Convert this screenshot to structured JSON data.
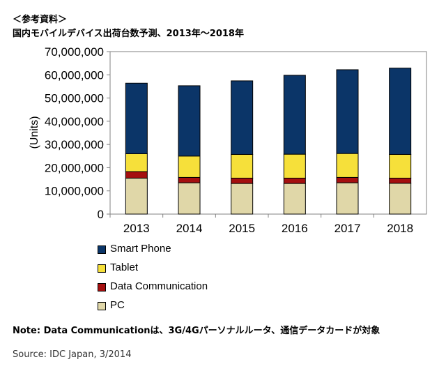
{
  "header": {
    "line1": "＜参考資料＞",
    "line2": "国内モバイルデバイス出荷台数予測、2013年～2018年"
  },
  "chart_data": {
    "type": "bar",
    "stacked": true,
    "categories": [
      "2013",
      "2014",
      "2015",
      "2016",
      "2017",
      "2018"
    ],
    "series": [
      {
        "name": "PC",
        "color": "#e0d7a8",
        "values": [
          15500000,
          13500000,
          13200000,
          13200000,
          13500000,
          13300000
        ]
      },
      {
        "name": "Data Communication",
        "color": "#a50f0f",
        "values": [
          2800000,
          2300000,
          2300000,
          2300000,
          2300000,
          2200000
        ]
      },
      {
        "name": "Tablet",
        "color": "#f6e03a",
        "values": [
          7700000,
          9200000,
          10200000,
          10300000,
          10300000,
          10200000
        ]
      },
      {
        "name": "Smart Phone",
        "color": "#0b3568",
        "values": [
          30400000,
          30300000,
          31700000,
          34000000,
          36100000,
          37200000
        ]
      }
    ],
    "ylabel": "(Units)",
    "ylim": [
      0,
      70000000
    ],
    "yticks": [
      "0",
      "10,000,000",
      "20,000,000",
      "30,000,000",
      "40,000,000",
      "50,000,000",
      "60,000,000",
      "70,000,000"
    ],
    "grid": false,
    "legend_position": "bottom"
  },
  "legend": [
    {
      "label": "Smart Phone",
      "color": "#0b3568"
    },
    {
      "label": "Tablet",
      "color": "#f6e03a"
    },
    {
      "label": "Data Communication",
      "color": "#a50f0f"
    },
    {
      "label": "PC",
      "color": "#e0d7a8"
    }
  ],
  "note": "Note: Data Communicationは、3G/4Gパーソナルルータ、通信データカードが対象",
  "source": "Source: IDC Japan, 3/2014"
}
